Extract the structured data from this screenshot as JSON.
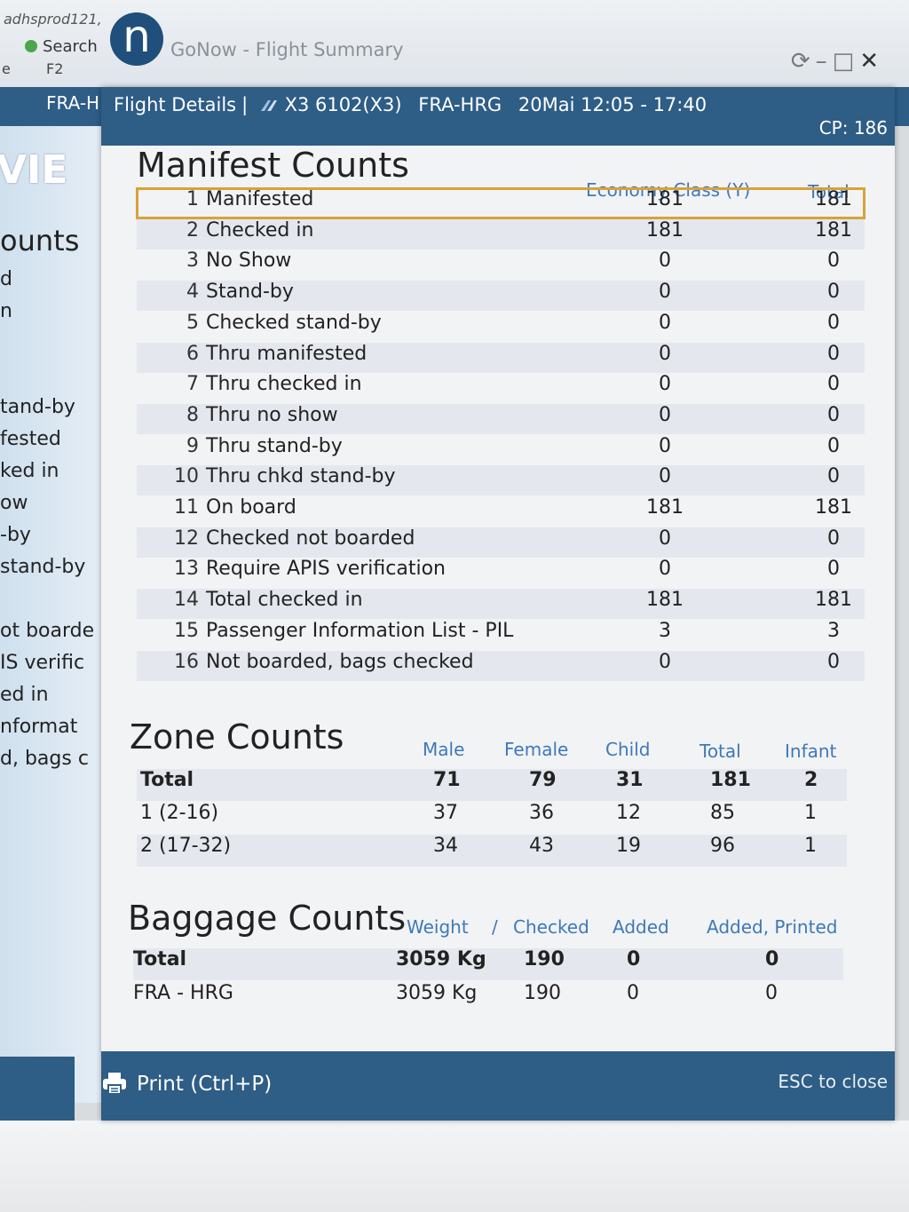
{
  "background": {
    "user": "adhsprod121,",
    "search_label": "Search",
    "e_label": "e",
    "shortcut": "F2",
    "app_logo": "n",
    "app_title": "GoNow - Flight Summary",
    "route_snippet": "FRA-H",
    "side_labels": [
      "VIE",
      "ounts",
      "d",
      "n",
      "tand-by",
      "fested",
      "ked in",
      "ow",
      "-by",
      "stand-by",
      "ot boarde",
      "IS verific",
      "ed in",
      "nformat",
      "d, bags c"
    ]
  },
  "dialog": {
    "title": "Flight Details",
    "flight": "X3 6102(X3)",
    "route": "FRA-HRG",
    "date_time": "20Mai 12:05 - 17:40",
    "cp": "CP: 186",
    "airline_icon": "airline-logo-icon"
  },
  "manifest": {
    "title": "Manifest Counts",
    "col_economy": "Economy Class (Y)",
    "col_total": "Total",
    "rows": [
      {
        "num": "1",
        "label": "Manifested",
        "economy": "181",
        "total": "181"
      },
      {
        "num": "2",
        "label": "Checked in",
        "economy": "181",
        "total": "181"
      },
      {
        "num": "3",
        "label": "No Show",
        "economy": "0",
        "total": "0"
      },
      {
        "num": "4",
        "label": "Stand-by",
        "economy": "0",
        "total": "0"
      },
      {
        "num": "5",
        "label": "Checked stand-by",
        "economy": "0",
        "total": "0"
      },
      {
        "num": "6",
        "label": "Thru manifested",
        "economy": "0",
        "total": "0"
      },
      {
        "num": "7",
        "label": "Thru checked in",
        "economy": "0",
        "total": "0"
      },
      {
        "num": "8",
        "label": "Thru no show",
        "economy": "0",
        "total": "0"
      },
      {
        "num": "9",
        "label": "Thru stand-by",
        "economy": "0",
        "total": "0"
      },
      {
        "num": "10",
        "label": "Thru chkd stand-by",
        "economy": "0",
        "total": "0"
      },
      {
        "num": "11",
        "label": "On board",
        "economy": "181",
        "total": "181"
      },
      {
        "num": "12",
        "label": "Checked not boarded",
        "economy": "0",
        "total": "0"
      },
      {
        "num": "13",
        "label": "Require APIS verification",
        "economy": "0",
        "total": "0"
      },
      {
        "num": "14",
        "label": "Total checked in",
        "economy": "181",
        "total": "181"
      },
      {
        "num": "15",
        "label": "Passenger Information List - PIL",
        "economy": "3",
        "total": "3"
      },
      {
        "num": "16",
        "label": "Not boarded, bags checked",
        "economy": "0",
        "total": "0"
      }
    ]
  },
  "zone": {
    "title": "Zone Counts",
    "headers": {
      "male": "Male",
      "female": "Female",
      "child": "Child",
      "total": "Total",
      "infant": "Infant"
    },
    "rows": [
      {
        "label": "Total",
        "male": "71",
        "female": "79",
        "child": "31",
        "total": "181",
        "infant": "2"
      },
      {
        "label": "1 (2-16)",
        "male": "37",
        "female": "36",
        "child": "12",
        "total": "85",
        "infant": "1"
      },
      {
        "label": "2 (17-32)",
        "male": "34",
        "female": "43",
        "child": "19",
        "total": "96",
        "infant": "1"
      }
    ]
  },
  "baggage": {
    "title": "Baggage Counts",
    "headers": {
      "weight": "Weight",
      "slash": "/",
      "checked": "Checked",
      "added": "Added",
      "added_printed": "Added, Printed"
    },
    "rows": [
      {
        "label": "Total",
        "weight": "3059 Kg",
        "checked": "190",
        "added": "0",
        "added_printed": "0"
      },
      {
        "label": "FRA - HRG",
        "weight": "3059 Kg",
        "checked": "190",
        "added": "0",
        "added_printed": "0"
      }
    ]
  },
  "footer": {
    "print_label": "Print (Ctrl+P)",
    "esc_label": "ESC to close"
  }
}
